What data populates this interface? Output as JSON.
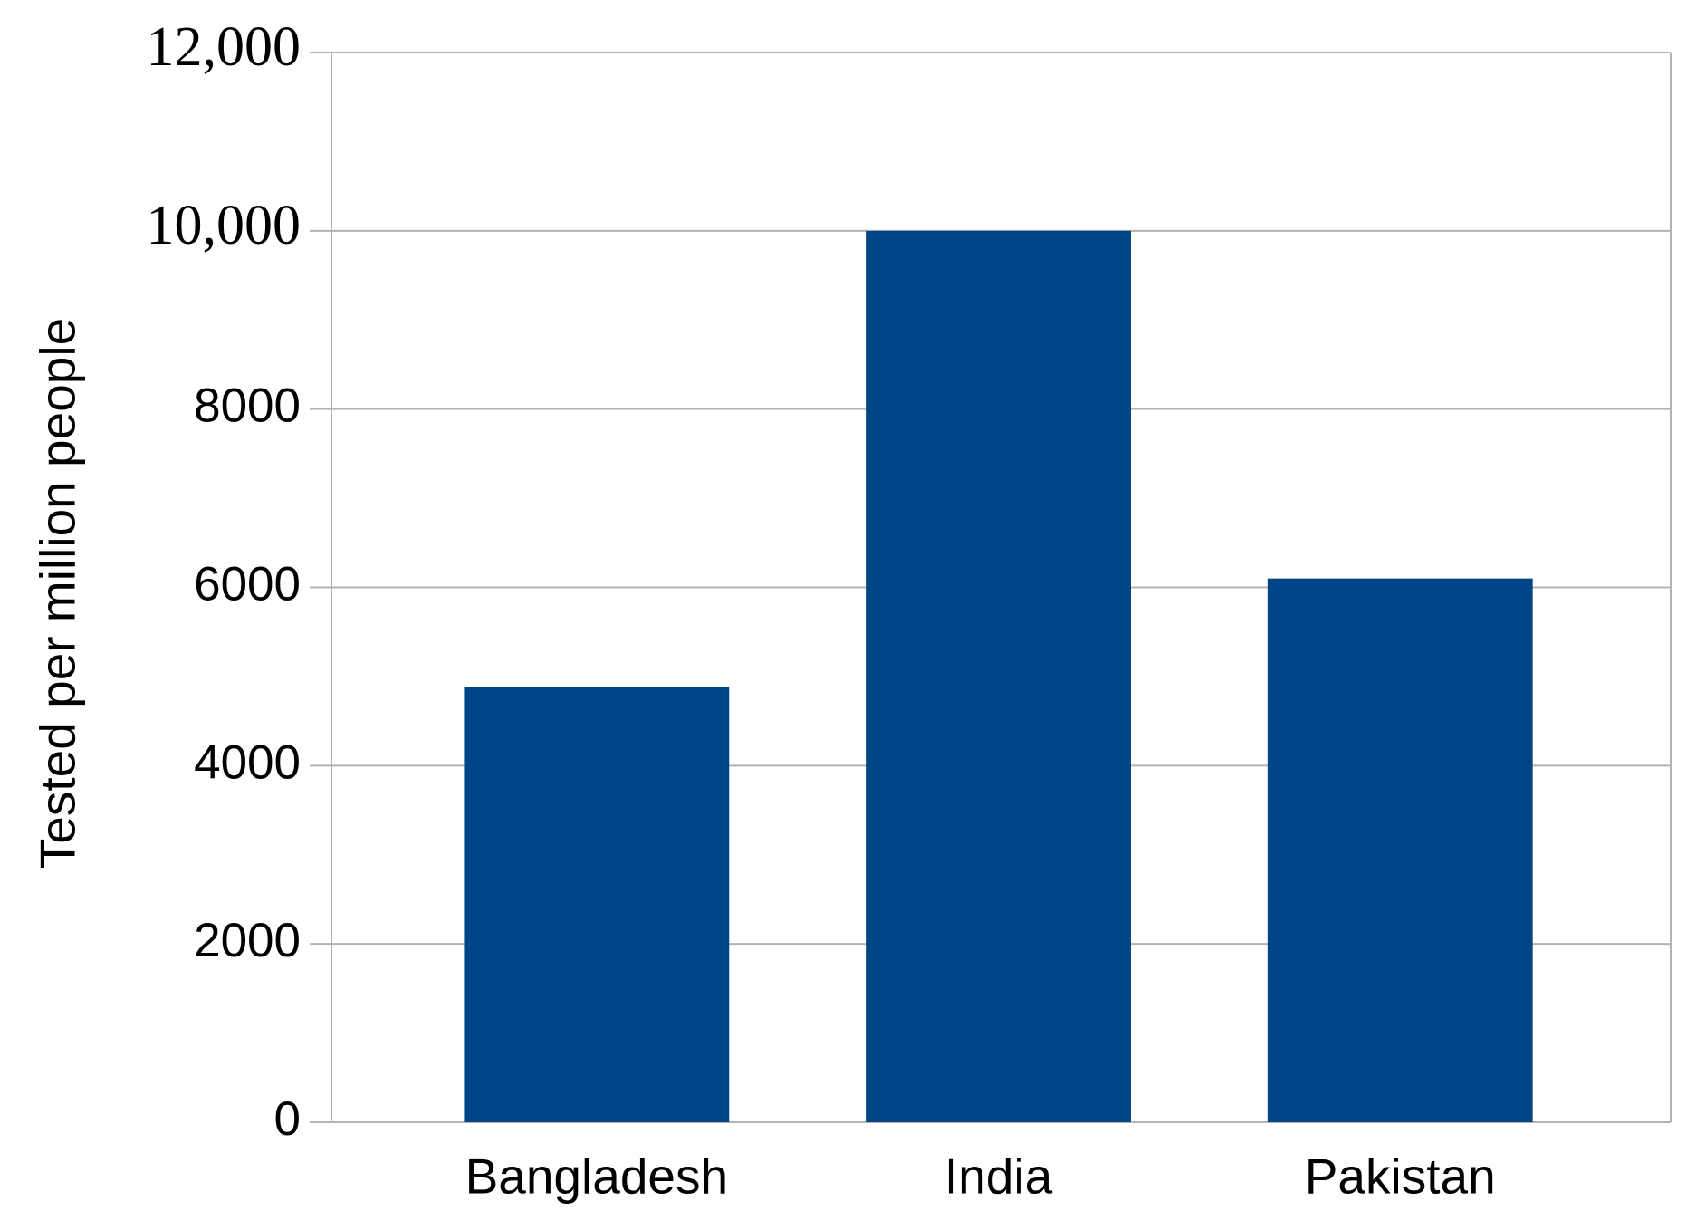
{
  "chart_data": {
    "type": "bar",
    "y_label": "Tested per million people",
    "categories": [
      "Bangladesh",
      "India",
      "Pakistan"
    ],
    "values": [
      4880,
      10000,
      6100
    ],
    "color": "#004586",
    "ylim": [
      0,
      12000
    ],
    "yticks": [
      0,
      2000,
      4000,
      6000,
      8000,
      {
        "value": 10000,
        "label": "10,000"
      },
      {
        "value": 12000,
        "label": "12,000"
      }
    ],
    "grid": true
  }
}
